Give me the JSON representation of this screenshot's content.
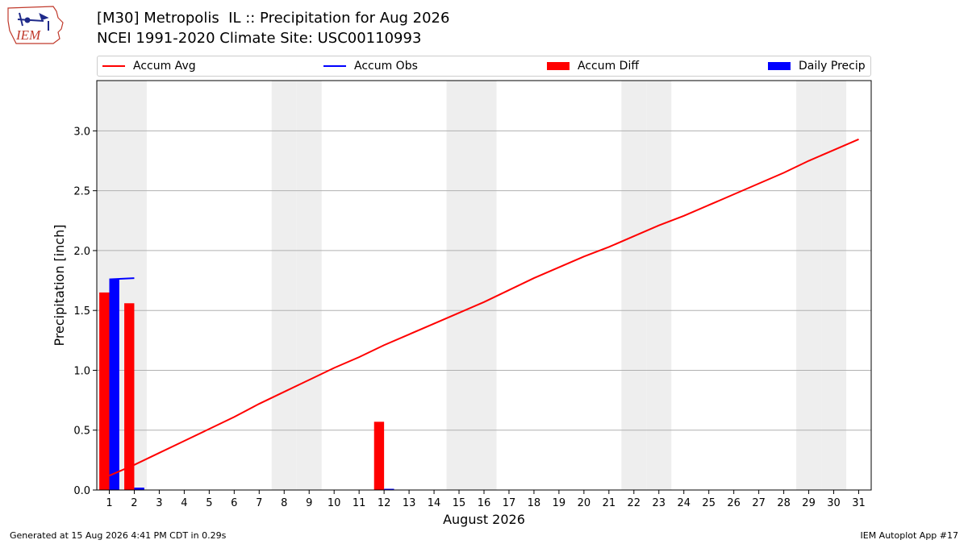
{
  "header": {
    "title_line1": "[M30] Metropolis  IL :: Precipitation for Aug 2026",
    "title_line2": "NCEI 1991-2020 Climate Site: USC00110993",
    "logo_text": "IEM"
  },
  "legend": {
    "accum_avg": "Accum Avg",
    "accum_obs": "Accum Obs",
    "accum_diff": "Accum Diff",
    "daily_precip": "Daily Precip"
  },
  "footer": {
    "left": "Generated at 15 Aug 2026 4:41 PM CDT in 0.29s",
    "right": "IEM Autoplot App #17"
  },
  "colors": {
    "avg": "#ff0000",
    "obs": "#0000ff",
    "diff": "#ff0000",
    "daily": "#0000ff",
    "weekend_shade": "#eeeeee",
    "grid": "#b0b0b0"
  },
  "chart_data": {
    "type": "bar",
    "xlabel": "August 2026",
    "ylabel": "Precipitation [inch]",
    "x": [
      1,
      2,
      3,
      4,
      5,
      6,
      7,
      8,
      9,
      10,
      11,
      12,
      13,
      14,
      15,
      16,
      17,
      18,
      19,
      20,
      21,
      22,
      23,
      24,
      25,
      26,
      27,
      28,
      29,
      30,
      31
    ],
    "xlim": [
      0.5,
      31.5
    ],
    "ylim": [
      0,
      3.42
    ],
    "yticks": [
      0.0,
      0.5,
      1.0,
      1.5,
      2.0,
      2.5,
      3.0
    ],
    "ytick_labels": [
      "0.0",
      "0.5",
      "1.0",
      "1.5",
      "2.0",
      "2.5",
      "3.0"
    ],
    "grid": "horizontal",
    "legend_position": "top",
    "weekend_shaded_days": [
      1,
      2,
      8,
      9,
      15,
      16,
      22,
      23,
      29,
      30
    ],
    "series": [
      {
        "name": "Accum Avg",
        "kind": "line",
        "x": [
          1,
          2,
          3,
          4,
          5,
          6,
          7,
          8,
          9,
          10,
          11,
          12,
          13,
          14,
          15,
          16,
          17,
          18,
          19,
          20,
          21,
          22,
          23,
          24,
          25,
          26,
          27,
          28,
          29,
          30,
          31
        ],
        "values": [
          0.12,
          0.21,
          0.31,
          0.41,
          0.51,
          0.61,
          0.72,
          0.82,
          0.92,
          1.02,
          1.11,
          1.21,
          1.3,
          1.39,
          1.48,
          1.57,
          1.67,
          1.77,
          1.86,
          1.95,
          2.03,
          2.12,
          2.21,
          2.29,
          2.38,
          2.47,
          2.56,
          2.65,
          2.75,
          2.84,
          2.93
        ]
      },
      {
        "name": "Accum Obs",
        "kind": "line",
        "x": [
          1,
          2
        ],
        "values": [
          1.76,
          1.77
        ]
      },
      {
        "name": "Accum Diff",
        "kind": "bar",
        "x": [
          1,
          2,
          12
        ],
        "values": [
          1.65,
          1.56,
          0.57
        ]
      },
      {
        "name": "Daily Precip",
        "kind": "bar",
        "x": [
          1,
          2,
          12
        ],
        "values": [
          1.76,
          0.02,
          0.01
        ]
      }
    ]
  }
}
